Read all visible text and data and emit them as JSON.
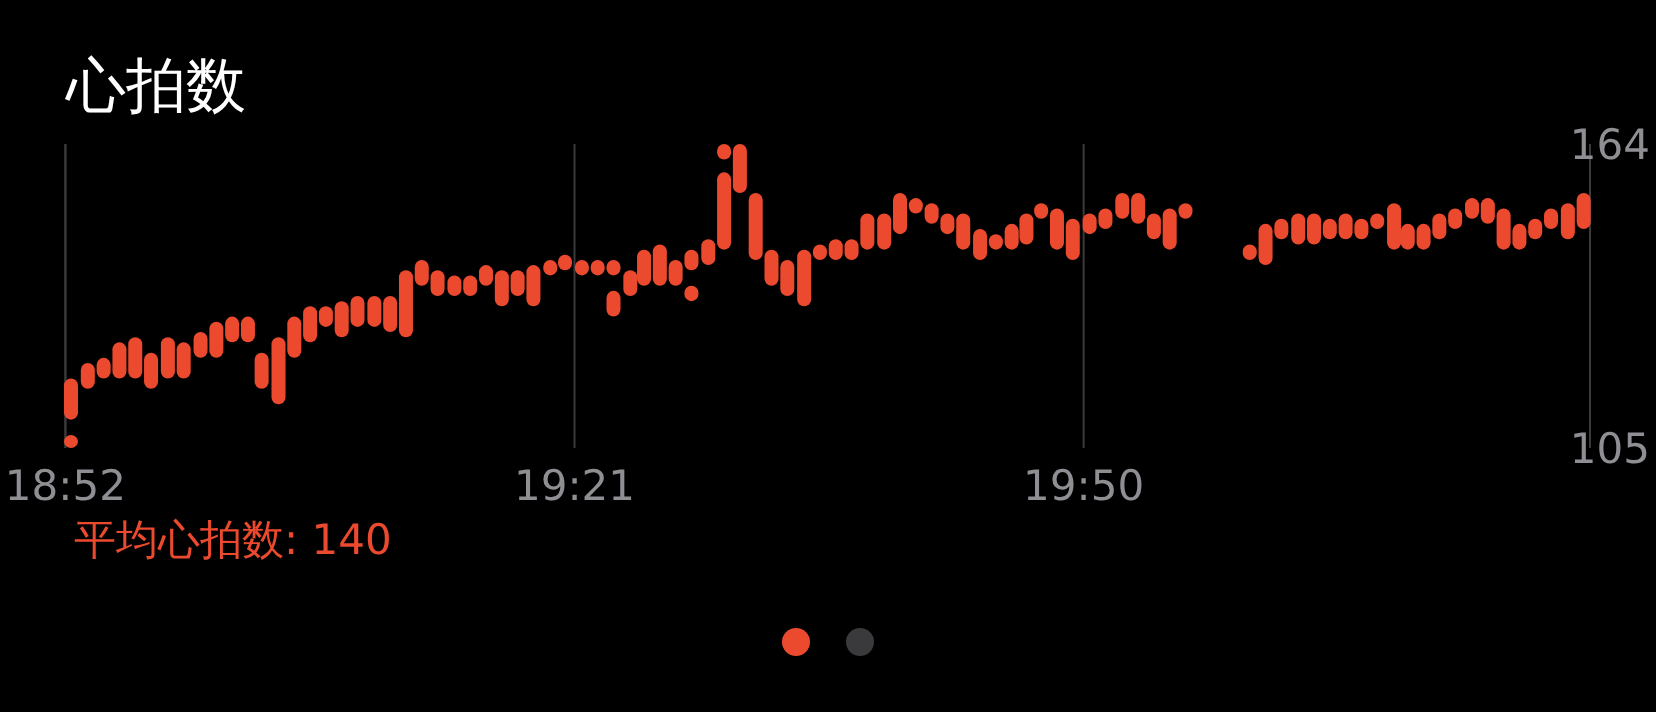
{
  "chart_data": {
    "type": "bar",
    "title": "心拍数",
    "annotations": [
      "平均心拍数: 140"
    ],
    "grid": "x",
    "xlim": [
      18.8667,
      20.314
    ],
    "xticks": [
      {
        "value": 18.8667,
        "label": "18:52"
      },
      {
        "value": 19.35,
        "label": "19:21"
      },
      {
        "value": 19.8333,
        "label": "19:50"
      }
    ],
    "ylim": [
      105,
      164
    ],
    "yticks": [
      105,
      164
    ],
    "series": [
      {
        "color": "#eb4a2f",
        "x": [
          18.872,
          18.888,
          18.903,
          18.918,
          18.933,
          18.948,
          18.964,
          18.979,
          18.995,
          19.01,
          19.025,
          19.04,
          19.053,
          19.069,
          19.084,
          19.099,
          19.114,
          19.129,
          19.144,
          19.16,
          19.175,
          19.19,
          19.205,
          19.22,
          19.236,
          19.251,
          19.266,
          19.281,
          19.296,
          19.311,
          19.327,
          19.341,
          19.357,
          19.372,
          19.387,
          19.403,
          19.416,
          19.431,
          19.446,
          19.461,
          19.477,
          19.492,
          19.507,
          19.522,
          19.537,
          19.552,
          19.568,
          19.583,
          19.598,
          19.613,
          19.628,
          19.644,
          19.659,
          19.674,
          19.689,
          19.704,
          19.719,
          19.735,
          19.75,
          19.765,
          19.779,
          19.793,
          19.808,
          19.823,
          19.839,
          19.854,
          19.87,
          19.885,
          19.9,
          19.915,
          19.93,
          19.991,
          20.006,
          20.021,
          20.037,
          20.052,
          20.067,
          20.082,
          20.097,
          20.112,
          20.128,
          20.141,
          20.156,
          20.171,
          20.186,
          20.202,
          20.217,
          20.232,
          20.247,
          20.262,
          20.277,
          20.293,
          20.308
        ],
        "base": [
          110.5,
          116.5,
          118.5,
          118.5,
          118.5,
          116.5,
          118.5,
          118.5,
          122.5,
          122.5,
          125.5,
          125.5,
          116.5,
          113.5,
          122.5,
          125.5,
          128.5,
          126.5,
          128.5,
          128.5,
          127.5,
          126.5,
          136.5,
          134.5,
          134.5,
          134.5,
          136.5,
          132.5,
          134.5,
          132.5,
          138.5,
          139.5,
          138.5,
          138.5,
          130.5,
          134.5,
          136.5,
          136.5,
          136.5,
          139.5,
          140.5,
          143.5,
          154.5,
          141.5,
          136.5,
          134.5,
          132.5,
          141.5,
          141.5,
          141.5,
          143.5,
          143.5,
          146.5,
          150.5,
          148.5,
          146.5,
          143.5,
          141.5,
          143.5,
          143.5,
          144.5,
          149.5,
          143.5,
          141.5,
          146.5,
          147.5,
          149.5,
          148.5,
          145.5,
          143.5,
          149.5,
          141.5,
          140.5,
          145.5,
          144.5,
          144.5,
          145.5,
          145.5,
          145.5,
          147.5,
          143.5,
          143.5,
          143.5,
          145.5,
          147.5,
          149.5,
          148.5,
          143.5,
          143.5,
          145.5,
          147.5,
          145.5,
          147.5
        ],
        "values": [
          8,
          5,
          4,
          7,
          8,
          7,
          8,
          7,
          5,
          7,
          5,
          5,
          7,
          13,
          8,
          7,
          4,
          7,
          6,
          6,
          7,
          13,
          5,
          5,
          4,
          4,
          4,
          7,
          5,
          8,
          3,
          3,
          3,
          3,
          5,
          5,
          7,
          8,
          5,
          4,
          5,
          15,
          9.5,
          13,
          7,
          7,
          11,
          3,
          4,
          4,
          7,
          7,
          8,
          3,
          4,
          4,
          7,
          6,
          3,
          5,
          6,
          3,
          8,
          8,
          4,
          4,
          5,
          6,
          5,
          8,
          3,
          3,
          8,
          4,
          6,
          6,
          4,
          5,
          4,
          3,
          9,
          5,
          5,
          5,
          4,
          4,
          5,
          8,
          5,
          4,
          4,
          7,
          7
        ]
      },
      {
        "color": "#eb4a2f",
        "x": [
          18.872,
          19.387,
          19.461,
          19.492
        ],
        "base": [
          105,
          138.5,
          133.5,
          161
        ],
        "values": [
          2.5,
          3,
          3,
          3
        ]
      }
    ]
  }
}
